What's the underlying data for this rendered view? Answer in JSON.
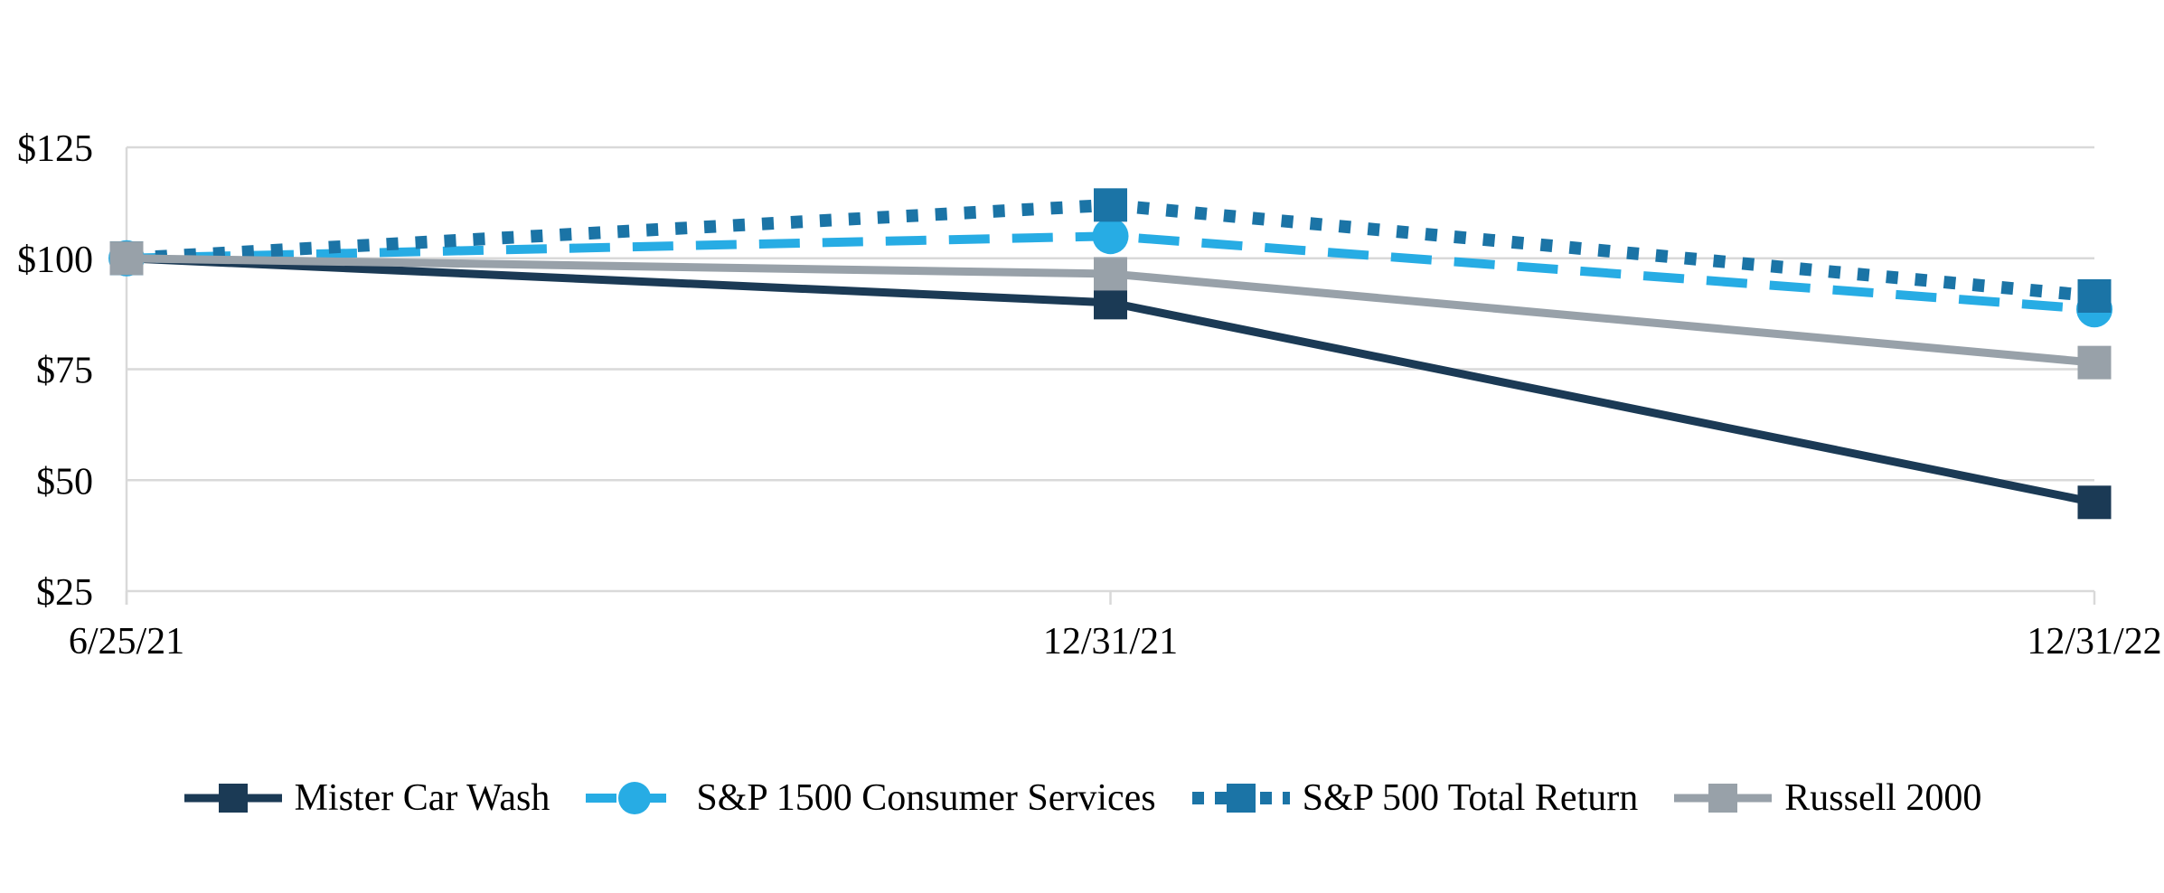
{
  "chart_data": {
    "type": "line",
    "title": "",
    "categories": [
      "6/25/21",
      "12/31/21",
      "12/31/22"
    ],
    "y_axis": {
      "range": [
        25,
        125
      ],
      "ticks": [
        25,
        50,
        75,
        100,
        125
      ],
      "tick_labels": [
        "$25",
        "$50",
        "$75",
        "$100",
        "$125"
      ],
      "prefix": "$"
    },
    "grid": true,
    "gridline_color": "#D9D9D9",
    "background_color": "#FFFFFF",
    "text_color": "#000000",
    "legend_position": "bottom",
    "series": [
      {
        "name": "Mister Car Wash",
        "color": "#1B3A55",
        "line_style": "solid",
        "marker": "square",
        "values": [
          100,
          90,
          45
        ]
      },
      {
        "name": "S&P 1500 Consumer Services",
        "color": "#27ACE4",
        "line_style": "dashed",
        "marker": "circle",
        "values": [
          100,
          105,
          88.5
        ]
      },
      {
        "name": "S&P 500 Total Return",
        "color": "#1B74A6",
        "line_style": "dotted",
        "marker": "square",
        "values": [
          100,
          112,
          91.5
        ]
      },
      {
        "name": "Russell 2000",
        "color": "#98A1A9",
        "line_style": "solid",
        "marker": "square",
        "values": [
          100,
          96.5,
          76.5
        ]
      }
    ]
  }
}
